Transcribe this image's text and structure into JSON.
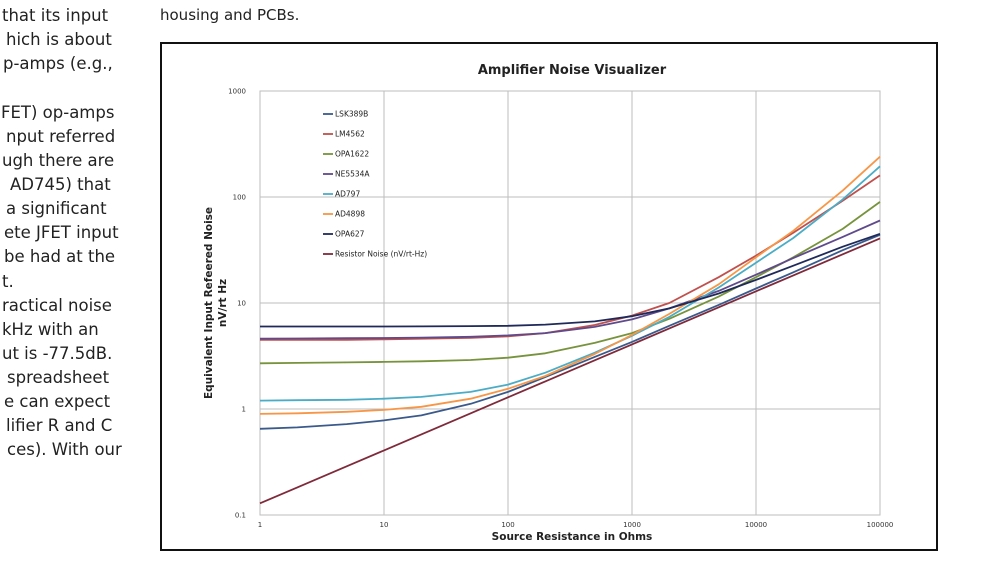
{
  "left_column": {
    "lines": [
      "that its input",
      "hich is about",
      "p-amps (e.g.,",
      "",
      "FET) op-amps",
      "nput referred",
      "ugh there are",
      "AD745) that",
      "a significant",
      "ete JFET input",
      "be had at the",
      "t.",
      "ractical noise",
      "kHz with an",
      "ut is -77.5dB.",
      "spreadsheet",
      "e can expect",
      "lifier R and C",
      "ces). With our"
    ]
  },
  "caption": "housing and PCBs.",
  "chart_data": {
    "type": "line",
    "title": "Amplifier Noise Visualizer",
    "xlabel": "Source Resistance in Ohms",
    "ylabel_lines": [
      "Equivalent Input Refeered Noise",
      "nV/rt Hz"
    ],
    "x_scale": "log",
    "y_scale": "log",
    "xlim": [
      1,
      100000
    ],
    "ylim": [
      0.1,
      1000
    ],
    "x_ticks": [
      "1",
      "10",
      "100",
      "1000",
      "10000",
      "100000"
    ],
    "y_ticks": [
      "0.1",
      "1",
      "10",
      "100",
      "1000"
    ],
    "grid": true,
    "legend_position": "upper-left",
    "x": [
      1,
      2,
      5,
      10,
      20,
      50,
      100,
      200,
      500,
      1000,
      2000,
      5000,
      10000,
      20000,
      50000,
      100000
    ],
    "series": [
      {
        "name": "LSK389B",
        "color": "#3a5a8c",
        "values": [
          0.65,
          0.67,
          0.72,
          0.78,
          0.87,
          1.12,
          1.45,
          2.0,
          3.1,
          4.3,
          6.1,
          9.6,
          13.7,
          19.5,
          31.5,
          44
        ]
      },
      {
        "name": "LM4562",
        "color": "#c0504d",
        "values": [
          4.5,
          4.5,
          4.5,
          4.55,
          4.6,
          4.7,
          4.85,
          5.2,
          6.2,
          7.6,
          10,
          17.5,
          28,
          46,
          92,
          160
        ]
      },
      {
        "name": "OPA1622",
        "color": "#77933c",
        "values": [
          2.7,
          2.72,
          2.75,
          2.78,
          2.82,
          2.9,
          3.05,
          3.35,
          4.2,
          5.2,
          7.1,
          11.5,
          17.5,
          27,
          50,
          90
        ]
      },
      {
        "name": "NE5534A",
        "color": "#5f4a8b",
        "values": [
          4.6,
          4.62,
          4.65,
          4.68,
          4.72,
          4.8,
          4.95,
          5.2,
          5.95,
          7.0,
          8.9,
          13,
          18.5,
          26.5,
          42,
          60
        ]
      },
      {
        "name": "AD797",
        "color": "#4bacc6",
        "values": [
          1.2,
          1.21,
          1.22,
          1.25,
          1.3,
          1.45,
          1.7,
          2.2,
          3.4,
          4.9,
          7.4,
          14,
          24,
          41,
          95,
          195
        ]
      },
      {
        "name": "AD4898",
        "color": "#f79646",
        "values": [
          0.9,
          0.91,
          0.94,
          0.98,
          1.05,
          1.25,
          1.55,
          2.05,
          3.3,
          5.0,
          7.9,
          15,
          27,
          48,
          115,
          240
        ]
      },
      {
        "name": "OPA627",
        "color": "#1f2a5a",
        "values": [
          6.0,
          6.0,
          6.0,
          6.0,
          6.02,
          6.05,
          6.1,
          6.25,
          6.7,
          7.5,
          8.9,
          12.3,
          16.5,
          22.5,
          34,
          45
        ]
      },
      {
        "name": "Resistor Noise (nV/rt-Hz)",
        "color": "#7f2a3a",
        "values": [
          0.129,
          0.182,
          0.288,
          0.407,
          0.576,
          0.91,
          1.29,
          1.82,
          2.88,
          4.07,
          5.76,
          9.1,
          12.9,
          18.2,
          28.8,
          40.7
        ]
      }
    ]
  }
}
